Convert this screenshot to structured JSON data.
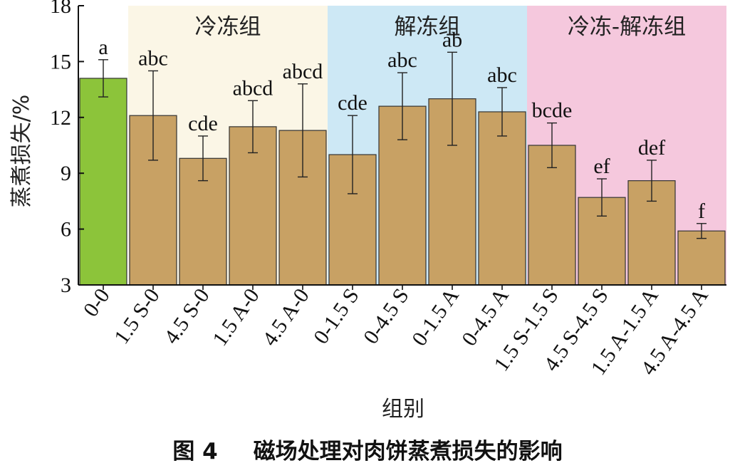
{
  "chart_data": {
    "type": "bar",
    "title": "",
    "xlabel": "组别",
    "ylabel": "蒸煮损失/%",
    "ylim": [
      3,
      18
    ],
    "yticks": [
      3,
      6,
      9,
      12,
      15,
      18
    ],
    "grid": false,
    "categories": [
      "0-0",
      "1.5 S-0",
      "4.5 S-0",
      "1.5 A-0",
      "4.5 A-0",
      "0-1.5 S",
      "0-4.5 S",
      "0-1.5 A",
      "0-4.5 A",
      "1.5 S-1.5 S",
      "4.5 S-4.5 S",
      "1.5 A-1.5 A",
      "4.5 A-4.5 A"
    ],
    "values": [
      14.1,
      12.1,
      9.8,
      11.5,
      11.3,
      10.0,
      12.6,
      13.0,
      12.3,
      10.5,
      7.7,
      8.6,
      5.9
    ],
    "errors": [
      1.0,
      2.4,
      1.2,
      1.4,
      2.5,
      2.1,
      1.8,
      2.5,
      1.3,
      1.2,
      1.0,
      1.1,
      0.4
    ],
    "significance": [
      "a",
      "abc",
      "cde",
      "abcd",
      "abcd",
      "cde",
      "abc",
      "ab",
      "abc",
      "bcde",
      "ef",
      "def",
      "f"
    ],
    "groups": [
      {
        "label": "冷冻组",
        "from": 1,
        "to": 4,
        "color": "#fbf6e6"
      },
      {
        "label": "解冻组",
        "from": 5,
        "to": 8,
        "color": "#cde8f5"
      },
      {
        "label": "冷冻-解冻组",
        "from": 9,
        "to": 12,
        "color": "#f5c8dd"
      }
    ],
    "colors": {
      "control_bar": "#8cc43a",
      "bar": "#c8a164",
      "bar_outline": "#333333",
      "axis": "#111111"
    }
  },
  "caption": {
    "figure_number": "图 4",
    "text": "磁场处理对肉饼蒸煮损失的影响"
  }
}
